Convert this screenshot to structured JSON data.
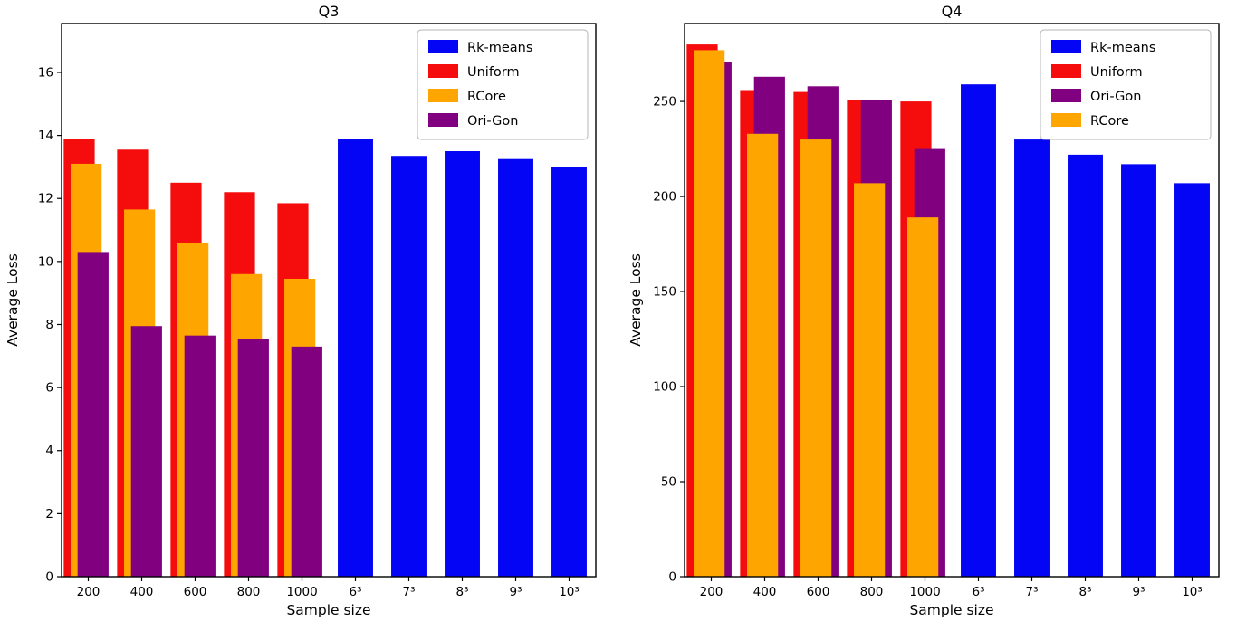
{
  "figure": {
    "background": "#ffffff"
  },
  "chart_data": [
    {
      "type": "bar",
      "title": "Q3",
      "xlabel": "Sample size",
      "ylabel": "Average Loss",
      "ylim": [
        0,
        17.55
      ],
      "yticks": [
        0,
        2,
        4,
        6,
        8,
        10,
        12,
        14,
        16
      ],
      "grid": false,
      "legend_position": "upper right",
      "categories": [
        "200",
        "400",
        "600",
        "800",
        "1000",
        "6³",
        "7³",
        "8³",
        "9³",
        "10³"
      ],
      "legend": [
        {
          "label": "Rk-means",
          "color": "#0505f5"
        },
        {
          "label": "Uniform",
          "color": "#f50d0d"
        },
        {
          "label": "RCore",
          "color": "#ffa500"
        },
        {
          "label": "Ori-Gon",
          "color": "#800080"
        }
      ],
      "series": [
        {
          "name": "Uniform",
          "color": "#f50d0d",
          "offset": 0.04,
          "width": 0.58,
          "values": [
            13.9,
            13.55,
            12.5,
            12.2,
            11.85,
            null,
            null,
            null,
            null,
            null
          ]
        },
        {
          "name": "RCore",
          "color": "#ffa500",
          "offset": 0.17,
          "width": 0.58,
          "values": [
            13.1,
            11.65,
            10.6,
            9.6,
            9.45,
            null,
            null,
            null,
            null,
            null
          ]
        },
        {
          "name": "Ori-Gon",
          "color": "#800080",
          "offset": 0.3,
          "width": 0.58,
          "values": [
            10.3,
            7.95,
            7.65,
            7.55,
            7.3,
            null,
            null,
            null,
            null,
            null
          ]
        },
        {
          "name": "Rk-means",
          "color": "#0505f5",
          "offset": 0.17,
          "width": 0.66,
          "values": [
            null,
            null,
            null,
            null,
            null,
            13.9,
            13.35,
            13.5,
            13.25,
            13.0
          ]
        }
      ]
    },
    {
      "type": "bar",
      "title": "Q4",
      "xlabel": "Sample size",
      "ylabel": "Average Loss",
      "ylim": [
        0,
        291
      ],
      "yticks": [
        0,
        50,
        100,
        150,
        200,
        250
      ],
      "grid": false,
      "legend_position": "upper right",
      "categories": [
        "200",
        "400",
        "600",
        "800",
        "1000",
        "6³",
        "7³",
        "8³",
        "9³",
        "10³"
      ],
      "legend": [
        {
          "label": "Rk-means",
          "color": "#0505f5"
        },
        {
          "label": "Uniform",
          "color": "#f50d0d"
        },
        {
          "label": "Ori-Gon",
          "color": "#800080"
        },
        {
          "label": "RCore",
          "color": "#ffa500"
        }
      ],
      "series": [
        {
          "name": "Uniform",
          "color": "#f50d0d",
          "offset": 0.04,
          "width": 0.58,
          "values": [
            280,
            256,
            255,
            251,
            250,
            null,
            null,
            null,
            null,
            null
          ]
        },
        {
          "name": "Ori-Gon",
          "color": "#800080",
          "offset": 0.3,
          "width": 0.58,
          "values": [
            271,
            263,
            258,
            251,
            225,
            null,
            null,
            null,
            null,
            null
          ]
        },
        {
          "name": "RCore",
          "color": "#ffa500",
          "offset": 0.17,
          "width": 0.58,
          "values": [
            277,
            233,
            230,
            207,
            189,
            null,
            null,
            null,
            null,
            null
          ]
        },
        {
          "name": "Rk-means",
          "color": "#0505f5",
          "offset": 0.17,
          "width": 0.66,
          "values": [
            null,
            null,
            null,
            null,
            null,
            259,
            230,
            222,
            217,
            207
          ]
        }
      ]
    }
  ]
}
